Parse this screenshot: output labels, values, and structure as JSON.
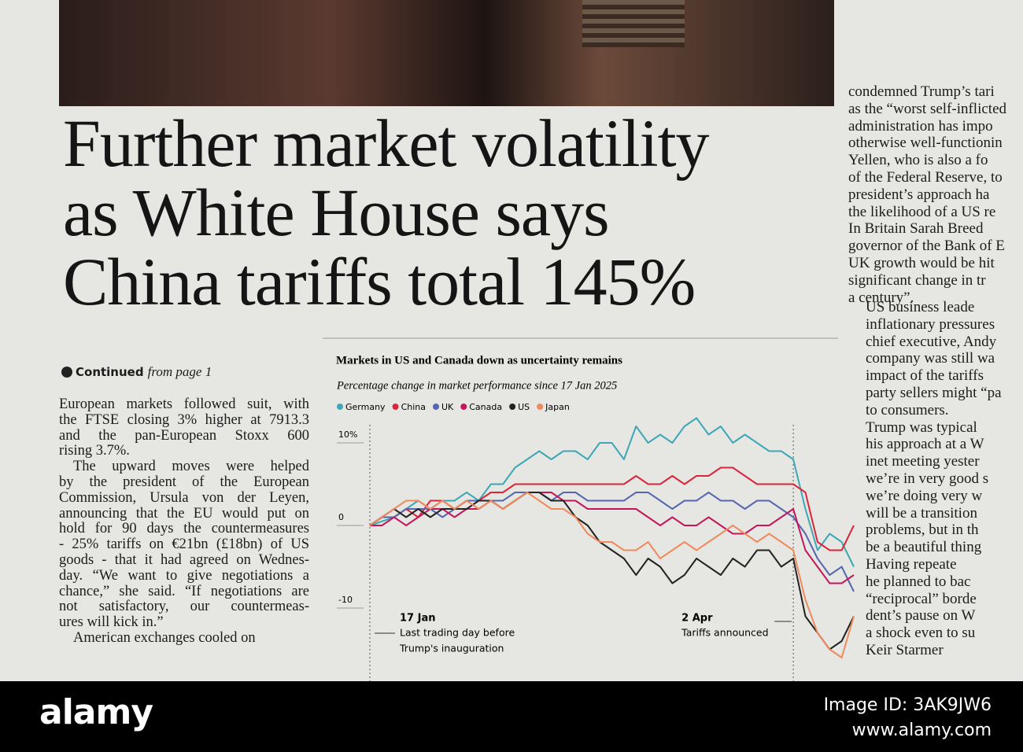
{
  "headline": [
    "Further market volatility",
    "as White House says",
    "China tariffs total 145%"
  ],
  "continued": {
    "bold": "Continued",
    "rest": "from page 1"
  },
  "article": [
    [
      "European markets followed suit, with",
      "the FTSE closing 3% higher at 7913.3",
      "and the pan-European Stoxx 600",
      "rising 3.7%."
    ],
    [
      "The upward moves were helped",
      "by the president of the European",
      "Commission, Ursula von der Leyen,",
      "announcing that the EU would put on",
      "hold for 90 days the countermeasures",
      "- 25% tariffs on €21bn (£18bn) of US",
      "goods - that it had agreed on Wednes-",
      "day. “We want to give negotiations a",
      "chance,” she said. “If negotiations are",
      "not satisfactory, our countermeas-",
      "ures will kick in.”"
    ],
    [
      "American exchanges cooled on"
    ]
  ],
  "side_column": [
    [
      "condemned Trump’s tari",
      "as the “worst self-inflicted",
      "administration has impo",
      "otherwise well-functionin",
      "Yellen, who is also a fo",
      "of the Federal Reserve, to",
      "president’s approach ha",
      "the likelihood of a US re",
      "In Britain Sarah Breed",
      "governor of the Bank of E",
      "UK growth would be hit",
      "significant change in tr",
      "a century”."
    ],
    [
      "US business leade",
      "inflationary pressures",
      "chief executive, Andy",
      "company was still wa",
      "impact of the tariffs",
      "party sellers might “pa",
      "to consumers.",
      "Trump was typical",
      "his approach at a W",
      "inet meeting yester",
      "we’re in very good s",
      "we’re doing very w",
      "will be a transition",
      "problems, but in th",
      "be a beautiful thing",
      "Having repeate",
      "he planned to bac",
      "“reciprocal” borde",
      "dent’s pause on W",
      "a shock even to su",
      "Keir Starmer"
    ]
  ],
  "watermark": {
    "brand": "alamy",
    "image_id": "Image ID: 3AK9JW6",
    "url": "www.alamy.com"
  },
  "chart_data": {
    "type": "line",
    "title": "Markets in US and Canada down as uncertainty remains",
    "subtitle": "Percentage change in market performance since 17 Jan 2025",
    "categories": [
      "17 Jan",
      null,
      null,
      null,
      null,
      null,
      null,
      null,
      null,
      null,
      null,
      null,
      null,
      null,
      null,
      null,
      null,
      null,
      null,
      null,
      null,
      null,
      null,
      null,
      null,
      null,
      null,
      null,
      null,
      null,
      null,
      null,
      null,
      null,
      null,
      "2 Apr",
      null,
      null,
      null,
      null,
      null
    ],
    "annotations": [
      [
        "Last trading day before",
        "Trump's inauguration"
      ],
      [
        "Tariffs announced"
      ]
    ],
    "ylim": [
      -19,
      13
    ],
    "yticks": [
      {
        "value": 10,
        "label": "10%"
      },
      0,
      -10
    ],
    "series": [
      {
        "name": "Germany",
        "color": "#3ea7b6",
        "values": [
          0,
          0.5,
          1,
          2,
          3,
          2,
          3,
          3,
          4,
          3,
          5,
          5,
          7,
          8,
          9,
          8,
          9,
          9,
          8,
          10,
          10,
          8,
          12,
          10,
          11,
          10,
          12,
          13,
          11,
          12,
          10,
          11,
          10,
          9,
          9,
          8,
          2,
          -3,
          -1,
          -2,
          -5
        ]
      },
      {
        "name": "China",
        "color": "#d9263a",
        "values": [
          0,
          1,
          1,
          2,
          1,
          3,
          3,
          2,
          3,
          3,
          4,
          4,
          5,
          5,
          5,
          5,
          5,
          5,
          5,
          5,
          5,
          5,
          6,
          5,
          5,
          6,
          5,
          6,
          6,
          7,
          7,
          6,
          5,
          5,
          5,
          5,
          4,
          -2,
          -3,
          -3,
          0
        ]
      },
      {
        "name": "UK",
        "color": "#5567b0",
        "values": [
          0,
          1,
          1,
          2,
          2,
          2,
          1,
          2,
          3,
          3,
          3,
          3,
          4,
          4,
          4,
          3,
          4,
          4,
          3,
          3,
          3,
          3,
          4,
          4,
          3,
          2,
          3,
          3,
          4,
          3,
          3,
          2,
          3,
          3,
          2,
          1,
          -1,
          -4,
          -6,
          -5,
          -8
        ]
      },
      {
        "name": "Canada",
        "color": "#c2185b",
        "values": [
          0,
          0,
          1,
          0,
          1,
          2,
          2,
          1,
          2,
          2,
          3,
          2,
          3,
          4,
          4,
          4,
          3,
          3,
          2,
          2,
          2,
          2,
          2,
          1,
          0,
          1,
          0,
          0,
          1,
          0,
          -1,
          -1,
          0,
          0,
          1,
          2,
          -3,
          -5,
          -7,
          -7,
          -6
        ]
      },
      {
        "name": "US",
        "color": "#222222",
        "values": [
          0,
          1,
          2,
          1,
          2,
          1,
          2,
          2,
          2,
          3,
          3,
          2,
          3,
          4,
          4,
          3,
          3,
          1,
          0,
          -2,
          -3,
          -4,
          -6,
          -4,
          -5,
          -7,
          -6,
          -4,
          -5,
          -6,
          -4,
          -5,
          -3,
          -3,
          -5,
          -4,
          -11,
          -13,
          -15,
          -14,
          -11
        ]
      },
      {
        "name": "Japan",
        "color": "#f08a5d",
        "values": [
          0,
          1,
          2,
          3,
          3,
          2,
          3,
          2,
          3,
          2,
          3,
          2,
          3,
          4,
          3,
          2,
          2,
          1,
          -1,
          -2,
          -2,
          -3,
          -3,
          -2,
          -4,
          -3,
          -2,
          -3,
          -2,
          -1,
          0,
          -1,
          -2,
          -1,
          -2,
          -3,
          -9,
          -13,
          -15,
          -16,
          -11
        ]
      }
    ]
  }
}
